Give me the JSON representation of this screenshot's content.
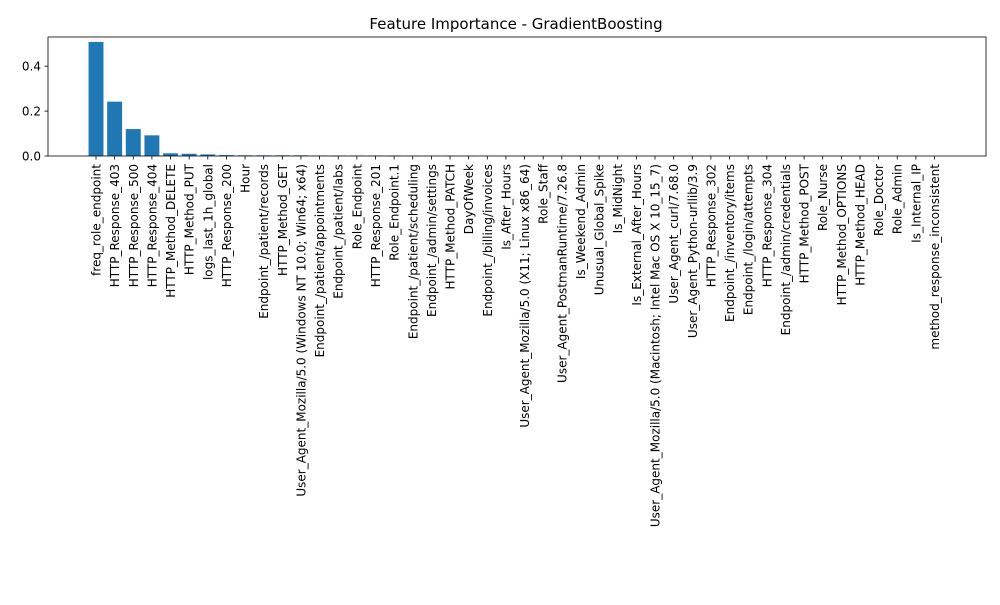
{
  "chart_data": {
    "type": "bar",
    "title": "Feature Importance - GradientBoosting",
    "xlabel": "",
    "ylabel": "",
    "ylim": [
      0,
      0.53
    ],
    "yticks": [
      0.0,
      0.2,
      0.4
    ],
    "ytick_labels": [
      "0.0",
      "0.2",
      "0.4"
    ],
    "grid": false,
    "legend": "none",
    "bar_color": "#1f77b4",
    "categories": [
      "freq_role_endpoint",
      "HTTP_Response_403",
      "HTTP_Response_500",
      "HTTP_Response_404",
      "HTTP_Method_DELETE",
      "HTTP_Method_PUT",
      "logs_last_1h_global",
      "HTTP_Response_200",
      "Hour",
      "Endpoint_/patient/records",
      "HTTP_Method_GET",
      "User_Agent_Mozilla/5.0 (Windows NT 10.0; Win64; x64)",
      "Endpoint_/patient/appointments",
      "Endpoint_/patient/labs",
      "Role_Endpoint",
      "HTTP_Response_201",
      "Role_Endpoint.1",
      "Endpoint_/patient/scheduling",
      "Endpoint_/admin/settings",
      "HTTP_Method_PATCH",
      "DayOfWeek",
      "Endpoint_/billing/invoices",
      "Is_After_Hours",
      "User_Agent_Mozilla/5.0 (X11; Linux x86_64)",
      "Role_Staff",
      "User_Agent_PostmanRuntime/7.26.8",
      "Is_Weekend_Admin",
      "Unusual_Global_Spike",
      "Is_MidNight",
      "Is_External_After_Hours",
      "User_Agent_Mozilla/5.0 (Macintosh; Intel Mac OS X 10_15_7)",
      "User_Agent_curl/7.68.0",
      "User_Agent_Python-urllib/3.9",
      "HTTP_Response_302",
      "Endpoint_/inventory/items",
      "Endpoint_/login/attempts",
      "HTTP_Response_304",
      "Endpoint_/admin/credentials",
      "HTTP_Method_POST",
      "Role_Nurse",
      "HTTP_Method_OPTIONS",
      "HTTP_Method_HEAD",
      "Role_Doctor",
      "Role_Admin",
      "Is_Internal_IP",
      "method_response_inconsistent"
    ],
    "values": [
      0.508,
      0.242,
      0.12,
      0.092,
      0.012,
      0.01,
      0.007,
      0.004,
      0.003,
      0.003,
      0.003,
      0.003,
      0.002,
      0.002,
      0.002,
      0.002,
      0.002,
      0.001,
      0.001,
      0.001,
      0.0008,
      0.0008,
      0.0006,
      0.0006,
      0.0005,
      0.0005,
      0.0004,
      0.0004,
      0.0003,
      0.0003,
      0.0003,
      0.0002,
      0.0002,
      0.0002,
      0.0002,
      0.0001,
      0.0001,
      0.0001,
      0.0001,
      0.0001,
      0.0001,
      0.0,
      0.0,
      0.0,
      0.0,
      0.0
    ]
  }
}
